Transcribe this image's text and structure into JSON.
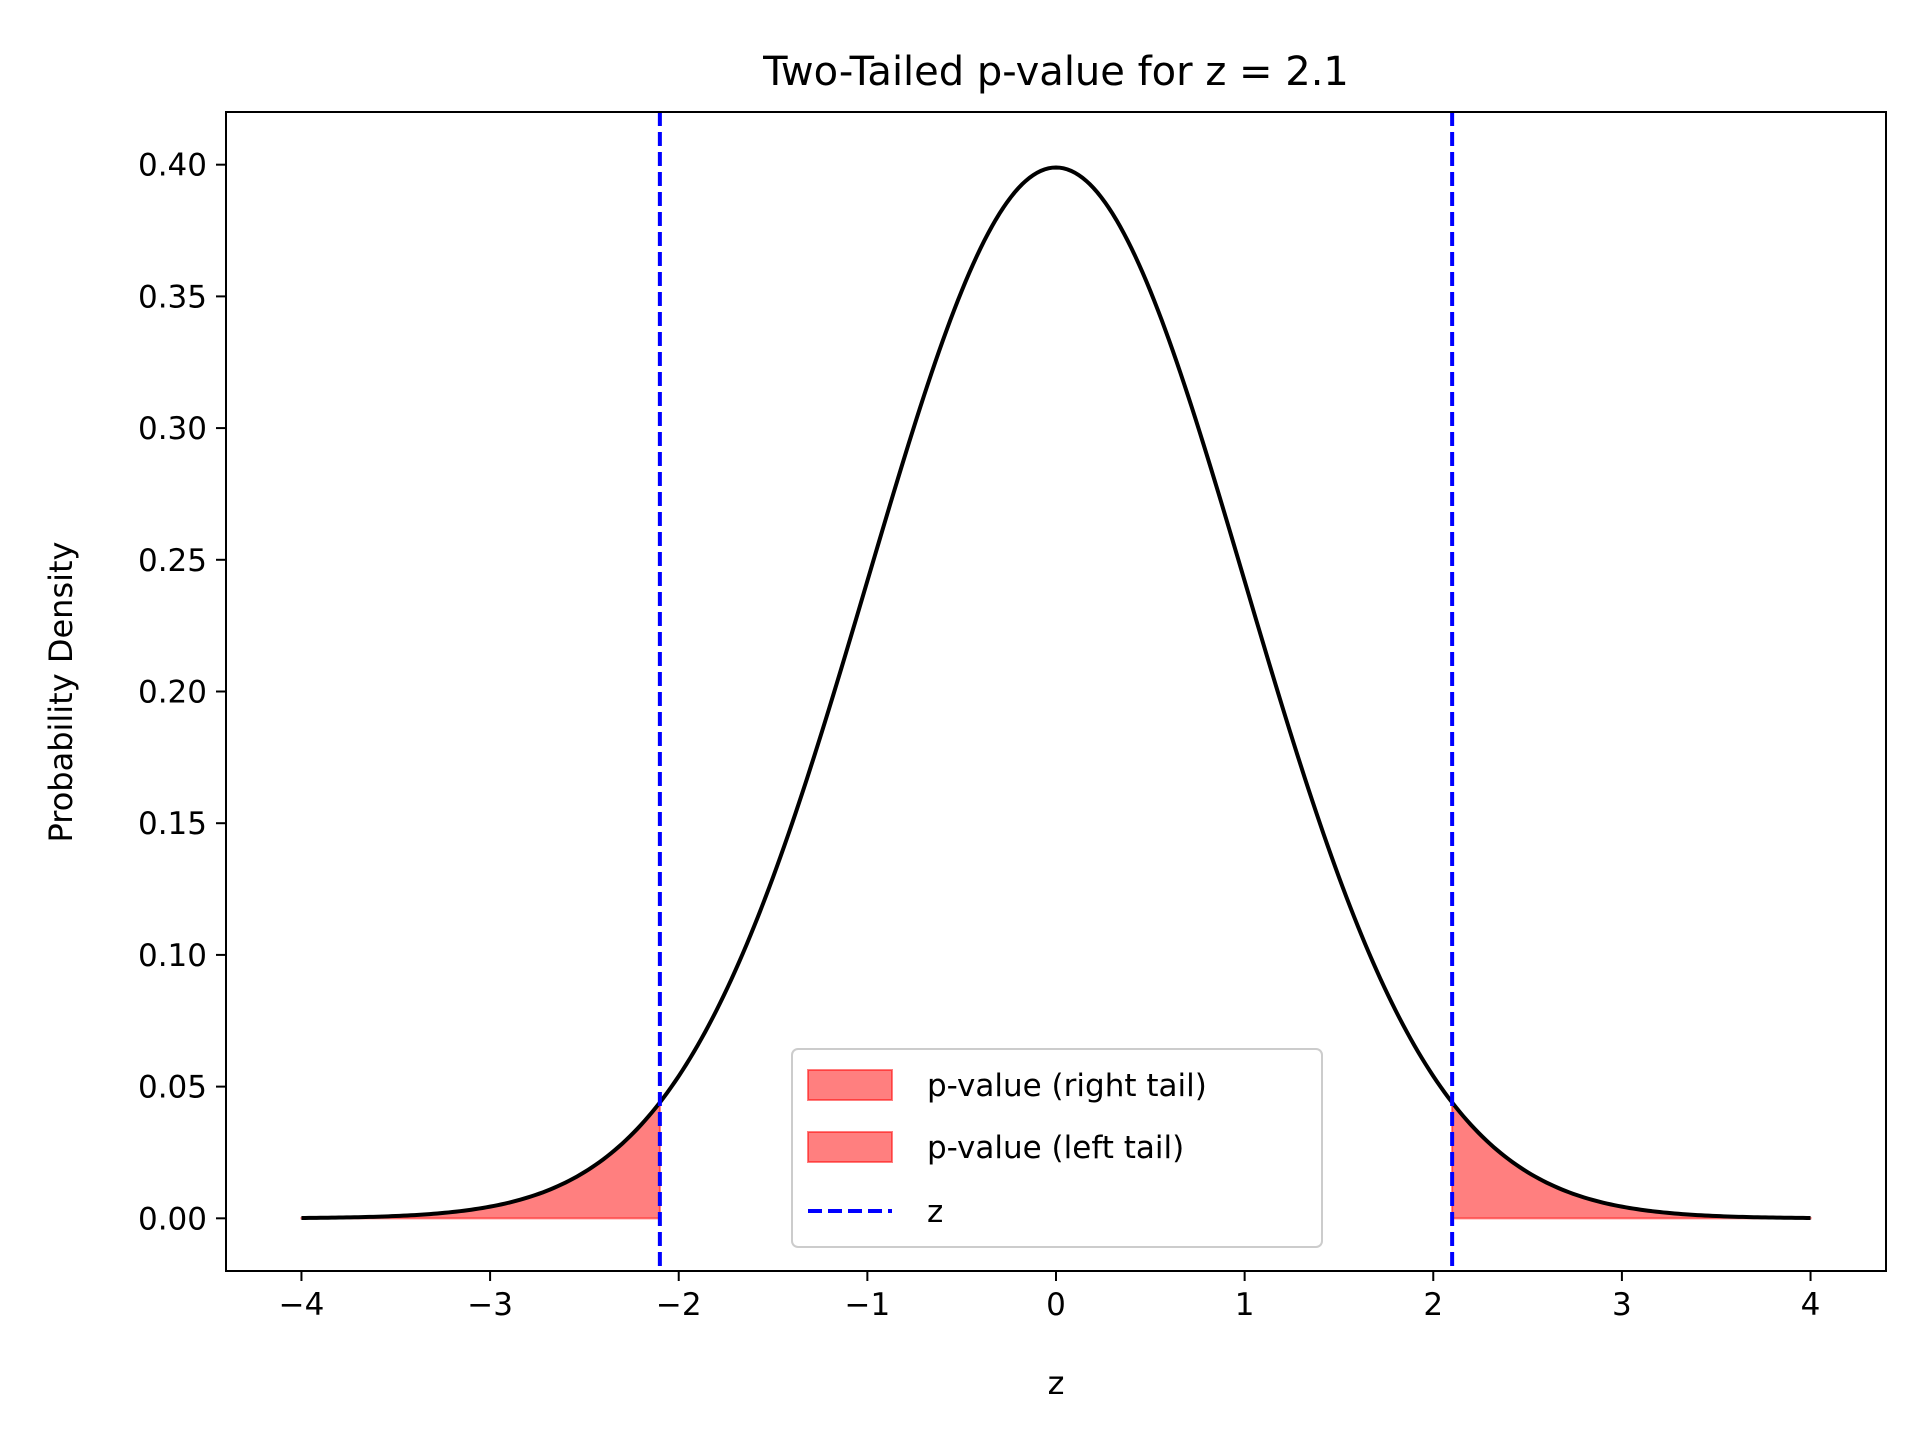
{
  "chart_data": {
    "type": "area",
    "title": "Two-Tailed p-value for z = 2.1",
    "xlabel": "z",
    "ylabel": "Probability Density",
    "xlim": [
      -4.4,
      4.4
    ],
    "ylim": [
      -0.02,
      0.42
    ],
    "x_ticks": [
      -4,
      -3,
      -2,
      -1,
      0,
      1,
      2,
      3,
      4
    ],
    "x_tick_labels": [
      "−4",
      "−3",
      "−2",
      "−1",
      "0",
      "1",
      "2",
      "3",
      "4"
    ],
    "y_ticks": [
      0.0,
      0.05,
      0.1,
      0.15,
      0.2,
      0.25,
      0.3,
      0.35,
      0.4
    ],
    "y_tick_labels": [
      "0.00",
      "0.05",
      "0.10",
      "0.15",
      "0.20",
      "0.25",
      "0.30",
      "0.35",
      "0.40"
    ],
    "z_value": 2.1,
    "grid": false,
    "legend_position": "lower center",
    "series": [
      {
        "kind": "line",
        "color": "#000000",
        "x": [
          -4,
          -3.5,
          -3,
          -2.5,
          -2.1,
          -2,
          -1.5,
          -1,
          -0.5,
          0,
          0.5,
          1,
          1.5,
          2,
          2.1,
          2.5,
          3,
          3.5,
          4
        ],
        "y": [
          0.0001,
          0.0009,
          0.0044,
          0.0175,
          0.044,
          0.054,
          0.1295,
          0.242,
          0.3521,
          0.3989,
          0.3521,
          0.242,
          0.1295,
          0.054,
          0.044,
          0.0175,
          0.0044,
          0.0009,
          0.0001
        ]
      },
      {
        "name": "p-value (right tail)",
        "kind": "fill",
        "color": "#ff0000",
        "alpha": 0.5,
        "x_range": [
          2.1,
          4
        ]
      },
      {
        "name": "p-value (left tail)",
        "kind": "fill",
        "color": "#ff0000",
        "alpha": 0.5,
        "x_range": [
          -4,
          -2.1
        ]
      },
      {
        "name": "z",
        "kind": "vline",
        "color": "#0000ff",
        "style": "dashed",
        "x": [
          -2.1,
          2.1
        ]
      }
    ]
  }
}
